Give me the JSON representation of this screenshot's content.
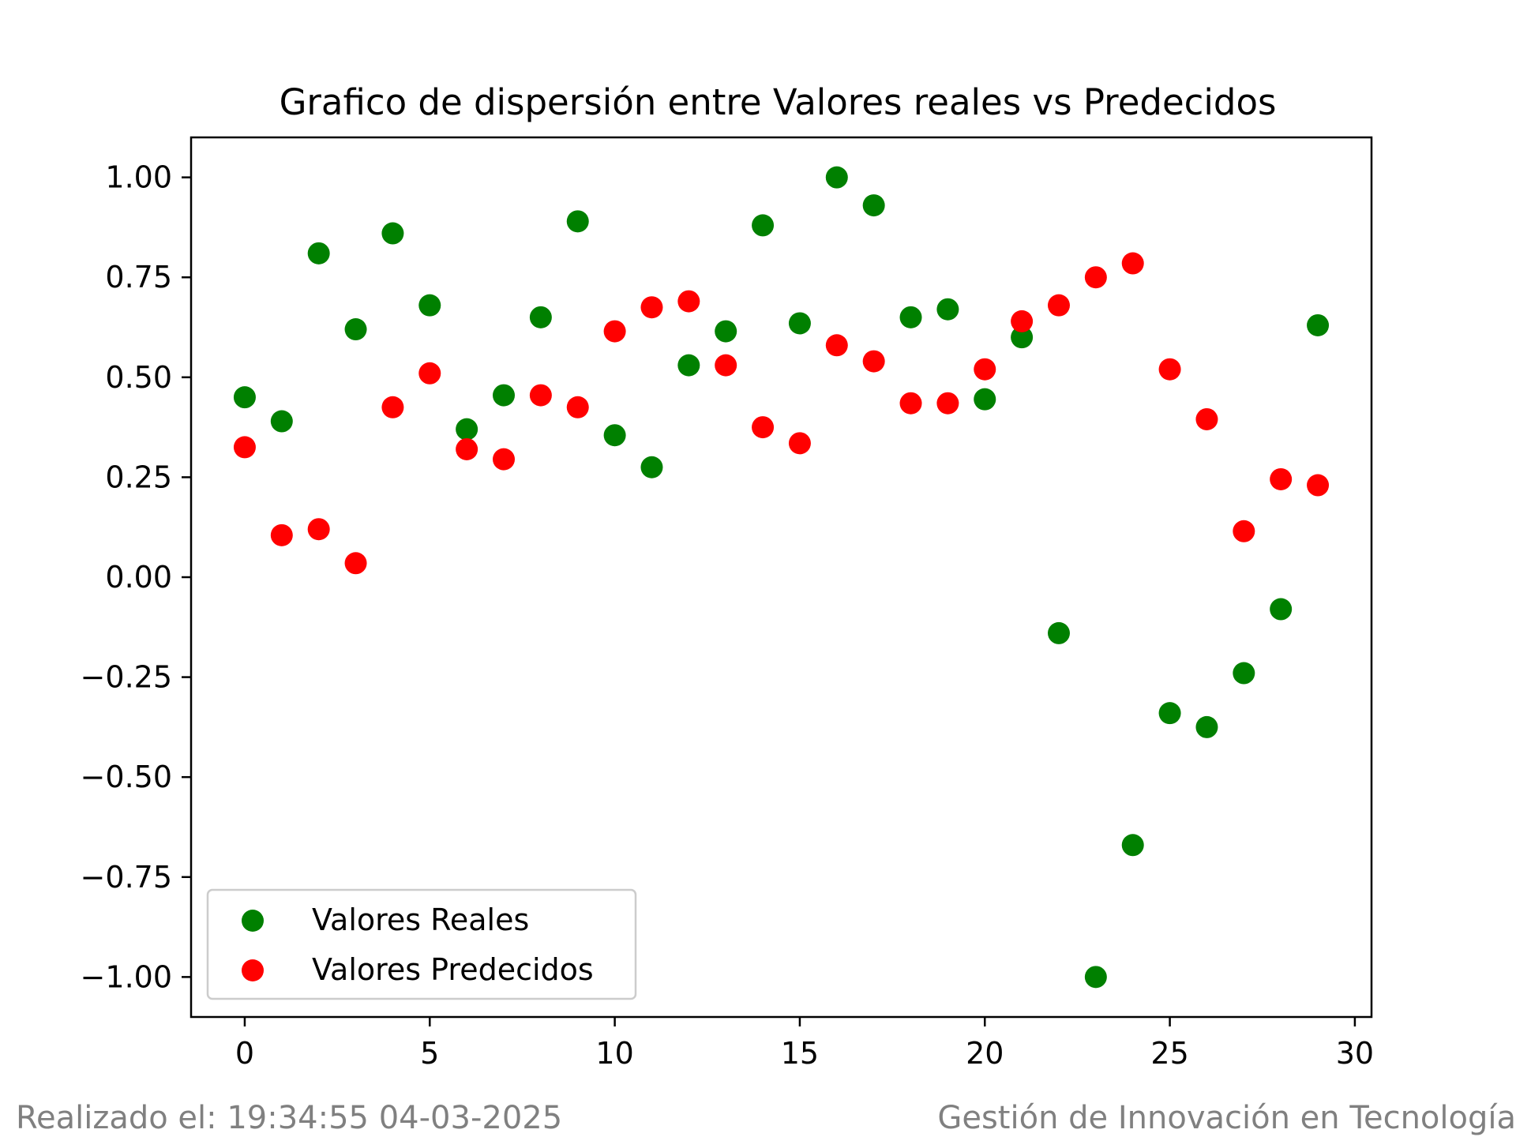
{
  "footer": {
    "left": "Realizado el: 19:34:55 04-03-2025",
    "right": "Gestión de Innovación en Tecnología"
  },
  "chart_data": {
    "type": "scatter",
    "title": "Grafico de dispersión entre Valores reales vs Predecidos",
    "xlabel": "",
    "ylabel": "",
    "xlim": [
      -1.45,
      30.45
    ],
    "ylim": [
      -1.1,
      1.1
    ],
    "xticks": [
      0,
      5,
      10,
      15,
      20,
      25,
      30
    ],
    "yticks": [
      1.0,
      0.75,
      0.5,
      0.25,
      0.0,
      -0.25,
      -0.5,
      -0.75,
      -1.0
    ],
    "ytick_labels": [
      "1.00",
      "0.75",
      "0.50",
      "0.25",
      "0.00",
      "−0.25",
      "−0.50",
      "−0.75",
      "−1.00"
    ],
    "xtick_labels": [
      "0",
      "5",
      "10",
      "15",
      "20",
      "25",
      "30"
    ],
    "grid": false,
    "legend_position": "lower-left",
    "x": [
      0,
      1,
      2,
      3,
      4,
      5,
      6,
      7,
      8,
      9,
      10,
      11,
      12,
      13,
      14,
      15,
      16,
      17,
      18,
      19,
      20,
      21,
      22,
      23,
      24,
      25,
      26,
      27,
      28,
      29
    ],
    "series": [
      {
        "name": "Valores Reales",
        "color": "#008000",
        "values": [
          0.45,
          0.39,
          0.81,
          0.62,
          0.86,
          0.68,
          0.37,
          0.455,
          0.65,
          0.89,
          0.355,
          0.275,
          0.53,
          0.615,
          0.88,
          0.635,
          1.0,
          0.93,
          0.65,
          0.67,
          0.445,
          0.6,
          -0.14,
          -1.0,
          -0.67,
          -0.34,
          -0.375,
          -0.24,
          -0.08,
          0.63
        ]
      },
      {
        "name": "Valores Predecidos",
        "color": "#ff0000",
        "values": [
          0.325,
          0.105,
          0.12,
          0.035,
          0.425,
          0.51,
          0.32,
          0.295,
          0.455,
          0.425,
          0.615,
          0.675,
          0.69,
          0.53,
          0.375,
          0.335,
          0.58,
          0.54,
          0.435,
          0.435,
          0.52,
          0.64,
          0.68,
          0.75,
          0.785,
          0.52,
          0.395,
          0.115,
          0.245,
          0.23
        ]
      }
    ]
  }
}
